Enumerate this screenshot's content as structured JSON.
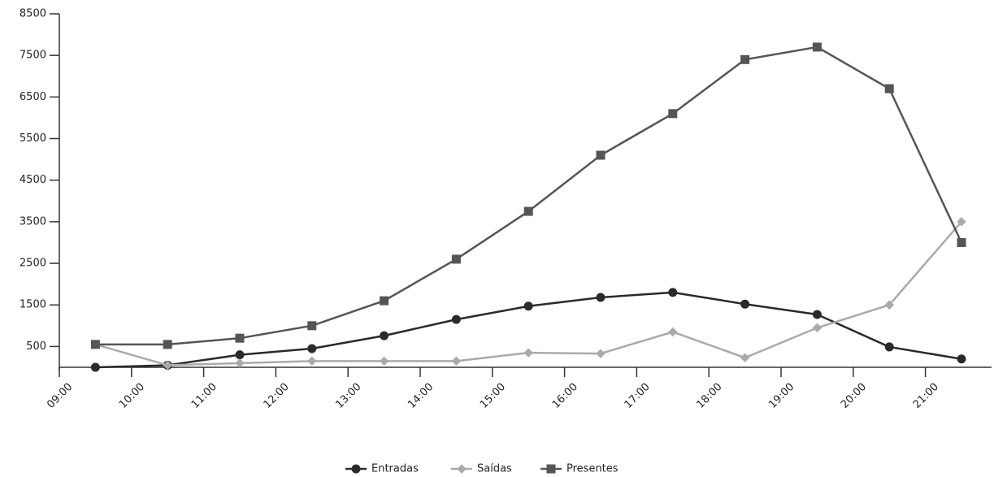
{
  "chart_data": {
    "type": "line",
    "categories": [
      "09:00",
      "10:00",
      "11:00",
      "12:00",
      "13:00",
      "14:00",
      "15:00",
      "16:00",
      "17:00",
      "18:00",
      "19:00",
      "20:00",
      "21:00"
    ],
    "series": [
      {
        "name": "Entradas",
        "color": "#2a2a2a",
        "marker": "circle",
        "values": [
          0,
          50,
          300,
          450,
          760,
          1150,
          1470,
          1680,
          1800,
          1520,
          1270,
          490,
          200
        ]
      },
      {
        "name": "Saídas",
        "color": "#aaaaaa",
        "marker": "diamond",
        "values": [
          550,
          50,
          100,
          150,
          150,
          150,
          350,
          330,
          850,
          230,
          950,
          1500,
          3500
        ]
      },
      {
        "name": "Presentes",
        "color": "#555555",
        "marker": "square",
        "values": [
          550,
          550,
          700,
          1000,
          1600,
          2600,
          3750,
          5100,
          6100,
          7400,
          7700,
          6700,
          3000
        ]
      }
    ],
    "ylim": [
      0,
      8500
    ],
    "yticks": [
      500,
      1500,
      2500,
      3500,
      4500,
      5500,
      6500,
      7500,
      8500
    ],
    "legend": "bottom"
  }
}
